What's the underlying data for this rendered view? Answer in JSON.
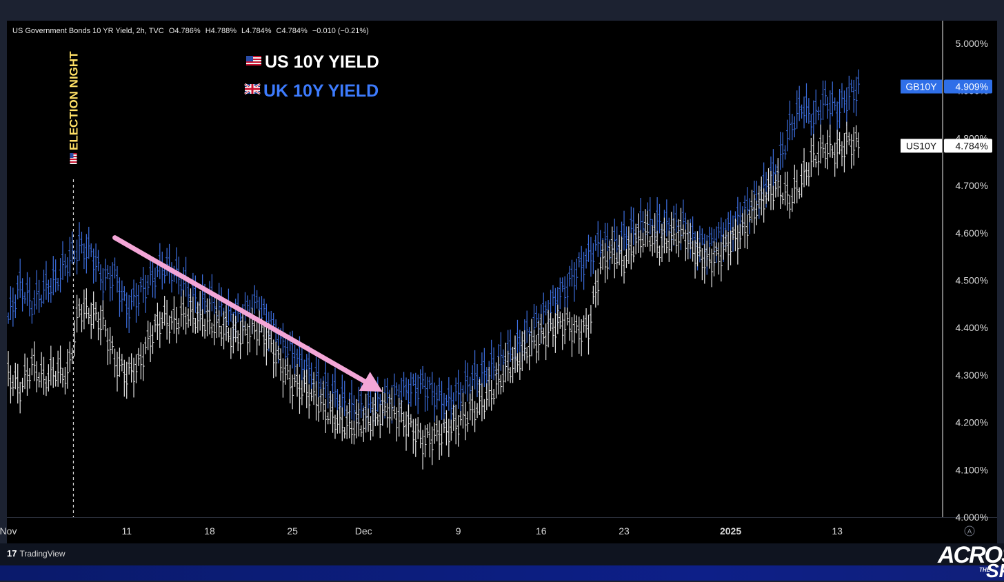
{
  "header": {
    "symbol": "US Government Bonds 10 YR Yield, 2h, TVC",
    "open": "O4.786%",
    "high": "H4.788%",
    "low": "L4.784%",
    "close": "C4.784%",
    "change": "−0.010 (−0.21%)"
  },
  "footer": {
    "brand": "TradingView",
    "brand_mark": "17",
    "auto_label": "A"
  },
  "watermark": {
    "text_a": "ACROS",
    "text_b": "THE",
    "text_c": "SP"
  },
  "chart_data": {
    "type": "line",
    "title": "",
    "annotations": [
      {
        "text": "US 10Y YIELD",
        "color": "#ffffff",
        "flag": "us-flag-icon"
      },
      {
        "text": "UK 10Y YIELD",
        "color": "#3d7bfd",
        "flag": "uk-flag-icon"
      },
      {
        "text": "ELECTION NIGHT",
        "color": "#ffe066",
        "x": 5.5
      },
      {
        "text": "downtrend-arrow",
        "color": "#f4a6d7",
        "from": [
          9,
          4.59
        ],
        "to": [
          31.6,
          4.265
        ]
      }
    ],
    "x_axis": {
      "type": "date",
      "tick_positions": [
        0,
        10,
        17,
        24,
        30,
        38,
        45,
        52,
        61,
        70
      ],
      "tick_labels": [
        "Nov",
        "11",
        "18",
        "25",
        "Dec",
        "9",
        "16",
        "23",
        "2025",
        "13"
      ],
      "bold_ticks": [
        "2025"
      ],
      "range": [
        0,
        75
      ]
    },
    "y_axis": {
      "ticks": [
        4.0,
        4.1,
        4.2,
        4.3,
        4.4,
        4.5,
        4.6,
        4.7,
        4.8,
        4.9,
        5.0
      ],
      "tick_labels": [
        "4.000%",
        "4.100%",
        "4.200%",
        "4.300%",
        "4.400%",
        "4.500%",
        "4.600%",
        "4.700%",
        "4.800%",
        "4.900%",
        "5.000%"
      ],
      "range": [
        4.0,
        5.0
      ],
      "unit": "%"
    },
    "series": [
      {
        "name": "GB10Y",
        "color": "#3d6fe0",
        "last_label": "4.909%",
        "last_value": 4.909,
        "x": [
          0,
          1,
          2,
          3,
          4,
          5,
          6,
          7,
          8,
          9,
          10,
          11,
          12,
          13,
          14,
          15,
          16,
          17,
          18,
          19,
          20,
          21,
          22,
          23,
          24,
          25,
          26,
          27,
          28,
          29,
          30,
          31,
          32,
          33,
          34,
          35,
          36,
          37,
          38,
          39,
          40,
          41,
          42,
          43,
          44,
          45,
          46,
          47,
          48,
          49,
          50,
          51,
          52,
          53,
          54,
          55,
          56,
          57,
          58,
          59,
          60,
          61,
          62,
          63,
          64,
          65,
          66,
          67,
          68,
          69,
          70,
          71,
          72
        ],
        "y": [
          4.42,
          4.49,
          4.45,
          4.48,
          4.5,
          4.54,
          4.57,
          4.56,
          4.5,
          4.51,
          4.44,
          4.47,
          4.5,
          4.53,
          4.52,
          4.49,
          4.45,
          4.46,
          4.44,
          4.42,
          4.43,
          4.45,
          4.41,
          4.37,
          4.35,
          4.32,
          4.29,
          4.27,
          4.25,
          4.23,
          4.23,
          4.24,
          4.25,
          4.26,
          4.27,
          4.28,
          4.26,
          4.24,
          4.26,
          4.29,
          4.3,
          4.32,
          4.34,
          4.36,
          4.39,
          4.42,
          4.45,
          4.48,
          4.52,
          4.55,
          4.58,
          4.57,
          4.59,
          4.61,
          4.62,
          4.62,
          4.61,
          4.62,
          4.58,
          4.57,
          4.59,
          4.61,
          4.64,
          4.66,
          4.7,
          4.74,
          4.82,
          4.87,
          4.84,
          4.88,
          4.86,
          4.89,
          4.91
        ]
      },
      {
        "name": "US10Y",
        "color": "#e6e6e6",
        "last_label": "4.784%",
        "last_value": 4.784,
        "x": [
          0,
          1,
          2,
          3,
          4,
          5,
          6,
          7,
          8,
          9,
          10,
          11,
          12,
          13,
          14,
          15,
          16,
          17,
          18,
          19,
          20,
          21,
          22,
          23,
          24,
          25,
          26,
          27,
          28,
          29,
          30,
          31,
          32,
          33,
          34,
          35,
          36,
          37,
          38,
          39,
          40,
          41,
          42,
          43,
          44,
          45,
          46,
          47,
          48,
          49,
          50,
          51,
          52,
          53,
          54,
          55,
          56,
          57,
          58,
          59,
          60,
          61,
          62,
          63,
          64,
          65,
          66,
          67,
          68,
          69,
          70,
          71,
          72
        ],
        "y": [
          4.3,
          4.27,
          4.32,
          4.29,
          4.31,
          4.3,
          4.44,
          4.43,
          4.41,
          4.33,
          4.3,
          4.32,
          4.38,
          4.42,
          4.41,
          4.43,
          4.42,
          4.41,
          4.4,
          4.38,
          4.39,
          4.4,
          4.37,
          4.32,
          4.28,
          4.27,
          4.25,
          4.22,
          4.2,
          4.19,
          4.2,
          4.21,
          4.23,
          4.21,
          4.19,
          4.16,
          4.17,
          4.18,
          4.2,
          4.22,
          4.24,
          4.27,
          4.31,
          4.33,
          4.36,
          4.38,
          4.4,
          4.41,
          4.39,
          4.4,
          4.53,
          4.56,
          4.54,
          4.58,
          4.6,
          4.57,
          4.59,
          4.6,
          4.56,
          4.54,
          4.55,
          4.58,
          4.6,
          4.65,
          4.68,
          4.7,
          4.67,
          4.71,
          4.76,
          4.78,
          4.77,
          4.79,
          4.784
        ]
      }
    ],
    "grid": false,
    "legend": "top-left"
  }
}
